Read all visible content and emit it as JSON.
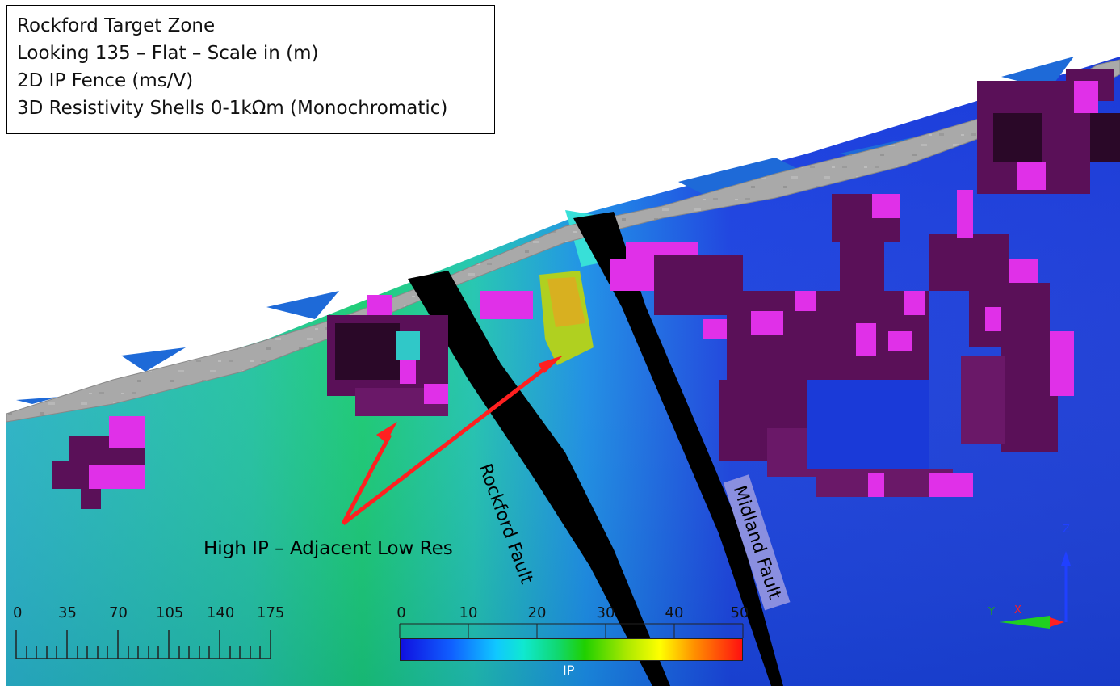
{
  "info": {
    "line1": "Rockford Target Zone",
    "line2": "Looking 135 – Flat – Scale in (m)",
    "line3": "2D IP Fence (ms/V)",
    "line4": "3D Resistivity Shells 0-1kΩm (Monochromatic)"
  },
  "annotations": {
    "callout": "High IP – Adjacent Low Res",
    "rockford_fault": "Rockford Fault",
    "midland_fault": "Midland Fault"
  },
  "scale_bar": {
    "ticks": [
      "0",
      "35",
      "70",
      "105",
      "140",
      "175"
    ]
  },
  "colorbar": {
    "title": "IP",
    "ticks": [
      "0",
      "10",
      "20",
      "30",
      "40",
      "50"
    ],
    "colors": [
      "#1010e0",
      "#10c8ff",
      "#20d000",
      "#ffff00",
      "#ff1010"
    ]
  },
  "axes": {
    "x": "X",
    "y": "Y",
    "z": "Z"
  },
  "colors": {
    "background": "#ffffff",
    "shell_dark": "#5a1058",
    "shell_bright": "#e030e8",
    "fault": "#000000",
    "surface": "#a8a8a8",
    "arrow": "#ff2020"
  }
}
